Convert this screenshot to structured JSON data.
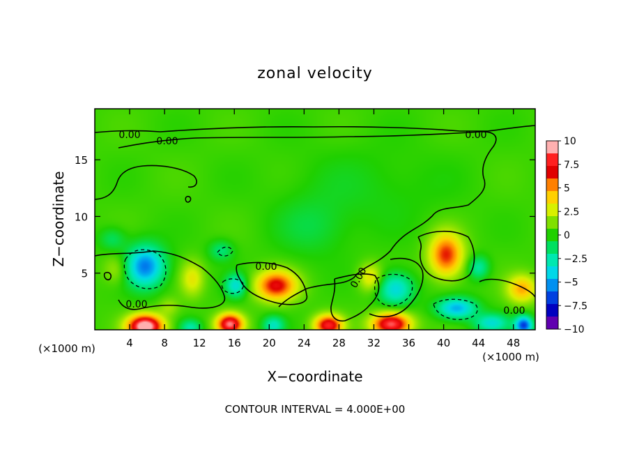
{
  "chart_data": {
    "type": "heatmap",
    "title": "zonal velocity",
    "xlabel": "X−coordinate",
    "ylabel": "Z−coordinate",
    "x_unit": "(×1000 m)",
    "x_unit_right": "(×1000 m)",
    "footer": "CONTOUR INTERVAL = 4.000E+00",
    "xlim": [
      0,
      50.5
    ],
    "ylim": [
      0,
      19.5
    ],
    "xticks": [
      4,
      8,
      12,
      16,
      20,
      24,
      28,
      32,
      36,
      40,
      44,
      48
    ],
    "xtick_labels": [
      "4",
      "8",
      "12",
      "16",
      "20",
      "24",
      "28",
      "32",
      "36",
      "40",
      "44",
      "48"
    ],
    "yticks": [
      5,
      10,
      15
    ],
    "ytick_labels": [
      "5",
      "10",
      "15"
    ],
    "colorbar": {
      "range": [
        -10,
        10
      ],
      "tick_labels": [
        "10",
        "7.5",
        "5",
        "2.5",
        "0",
        "−2.5",
        "−5",
        "−7.5",
        "−10"
      ],
      "colors": [
        "#ffb0b0",
        "#ff2020",
        "#e00000",
        "#ff8000",
        "#ffd000",
        "#d8f000",
        "#80e000",
        "#20d000",
        "#00e060",
        "#00e8b0",
        "#00d8e8",
        "#0090f0",
        "#0040e0",
        "#0000c0",
        "#6000b0"
      ]
    },
    "contour_labels": [
      "0.00",
      "0.00",
      "0.00",
      "0.00",
      "0.00",
      "0.00",
      "0.00"
    ],
    "blobs": [
      {
        "x": 5.8,
        "z": 5.6,
        "sx": 2.2,
        "sz": 1.8,
        "v": -6.5
      },
      {
        "x": 5.8,
        "z": 0.3,
        "sx": 2.0,
        "sz": 1.0,
        "v": 11
      },
      {
        "x": 15.5,
        "z": 0.5,
        "sx": 1.5,
        "sz": 0.9,
        "v": 9
      },
      {
        "x": 26.8,
        "z": 0.4,
        "sx": 1.6,
        "sz": 0.9,
        "v": 8
      },
      {
        "x": 34,
        "z": 0.5,
        "sx": 2.2,
        "sz": 1.0,
        "v": 9
      },
      {
        "x": 20.8,
        "z": 3.9,
        "sx": 2.3,
        "sz": 1.3,
        "v": 7
      },
      {
        "x": 40.3,
        "z": 6.6,
        "sx": 1.9,
        "sz": 1.9,
        "v": 6.5
      },
      {
        "x": 49,
        "z": 3.6,
        "sx": 1.7,
        "sz": 1.2,
        "v": 4.5
      },
      {
        "x": 11.2,
        "z": 4.5,
        "sx": 1.3,
        "sz": 1.5,
        "v": 2.8
      },
      {
        "x": 31.6,
        "z": 4.6,
        "sx": 1.3,
        "sz": 1.2,
        "v": 3.2
      },
      {
        "x": 2.5,
        "z": 5.3,
        "sx": 1.5,
        "sz": 1.3,
        "v": 1.8
      },
      {
        "x": 41.5,
        "z": 1.9,
        "sx": 2.2,
        "sz": 0.9,
        "v": -5.5
      },
      {
        "x": 34.5,
        "z": 3.6,
        "sx": 2.0,
        "sz": 1.4,
        "v": -4.5
      },
      {
        "x": 16.2,
        "z": 3.9,
        "sx": 1.2,
        "sz": 1.0,
        "v": -4
      },
      {
        "x": 49.2,
        "z": 0.4,
        "sx": 1.0,
        "sz": 0.8,
        "v": -7.5
      },
      {
        "x": 45.5,
        "z": 0.6,
        "sx": 2.0,
        "sz": 0.8,
        "v": -4
      },
      {
        "x": 20.5,
        "z": 0.4,
        "sx": 1.2,
        "sz": 0.8,
        "v": -3.5
      },
      {
        "x": 11,
        "z": 0.2,
        "sx": 1.2,
        "sz": 0.7,
        "v": -3
      },
      {
        "x": 14.5,
        "z": 7.0,
        "sx": 1.4,
        "sz": 0.9,
        "v": -2.2
      },
      {
        "x": 25,
        "z": 9.0,
        "sx": 4.0,
        "sz": 2.5,
        "v": -1.2
      },
      {
        "x": 31,
        "z": 12.5,
        "sx": 9.0,
        "sz": 3.5,
        "v": -0.7
      },
      {
        "x": 44,
        "z": 5.5,
        "sx": 1.2,
        "sz": 1.0,
        "v": -3
      },
      {
        "x": 2,
        "z": 8.0,
        "sx": 1.5,
        "sz": 1.0,
        "v": -1.8
      },
      {
        "x": 8.5,
        "z": 2.0,
        "sx": 1.2,
        "sz": 0.8,
        "v": 1.5
      }
    ]
  }
}
